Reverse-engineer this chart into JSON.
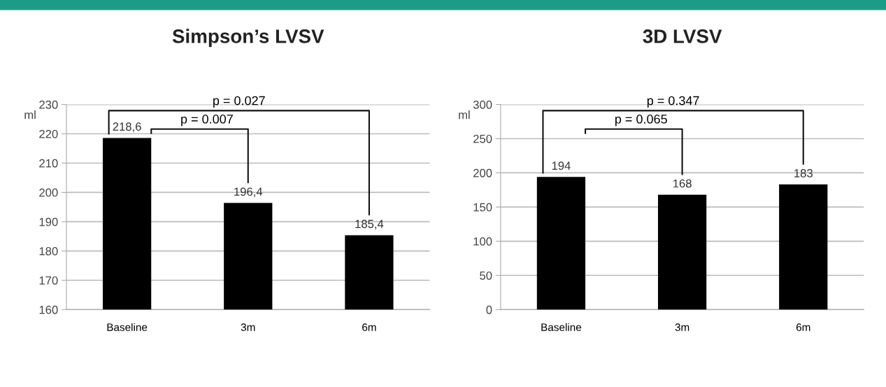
{
  "chart_data": [
    {
      "type": "bar",
      "title": "Simpson’s LVSV",
      "ylabel": "ml",
      "categories": [
        "Baseline",
        "3m",
        "6m"
      ],
      "values": [
        218.6,
        196.4,
        185.4
      ],
      "value_labels": [
        "218,6",
        "196,4",
        "185,4"
      ],
      "color": "#000000",
      "ylim": [
        160,
        230
      ],
      "yticks": [
        160,
        170,
        180,
        190,
        200,
        210,
        220,
        230
      ],
      "grid": "y",
      "annotations": [
        "p = 0.027",
        "p = 0.007"
      ]
    },
    {
      "type": "bar",
      "title": "3D LVSV",
      "ylabel": "ml",
      "categories": [
        "Baseline",
        "3m",
        "6m"
      ],
      "values": [
        194,
        168,
        183
      ],
      "value_labels": [
        "194",
        "168",
        "183"
      ],
      "color": "#000000",
      "ylim": [
        0,
        300
      ],
      "yticks": [
        0,
        50,
        100,
        150,
        200,
        250,
        300
      ],
      "grid": "y",
      "annotations": [
        "p = 0.347",
        "p = 0.065"
      ]
    }
  ]
}
